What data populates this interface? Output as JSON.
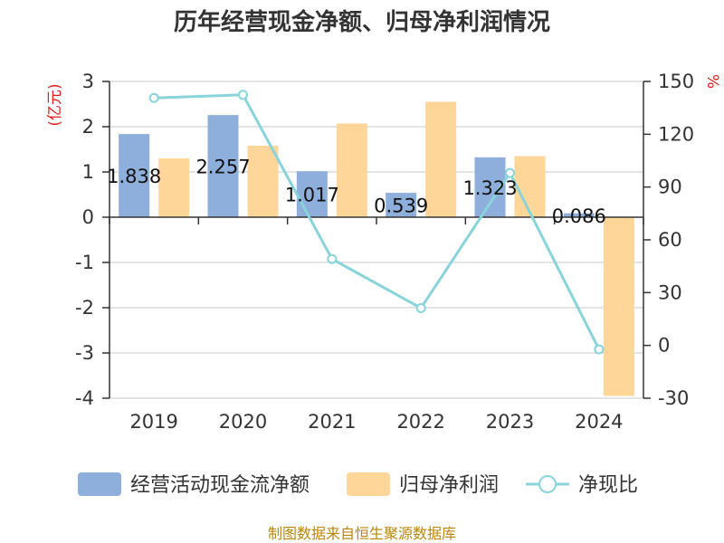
{
  "chart_data": {
    "type": "bar",
    "title": "历年经营现金净额、归母净利润情况",
    "categories": [
      "2019",
      "2020",
      "2021",
      "2022",
      "2023",
      "2024"
    ],
    "y_left": {
      "unit": "(亿元)",
      "ylim": [
        -4,
        3
      ],
      "ticks": [
        3,
        2,
        1,
        0,
        -1,
        -2,
        -3,
        -4
      ]
    },
    "y_right": {
      "unit": "%",
      "ylim": [
        -30,
        150
      ],
      "ticks": [
        150,
        120,
        90,
        60,
        30,
        0,
        -30
      ]
    },
    "series": [
      {
        "name": "经营活动现金流净额",
        "kind": "bar",
        "axis": "left",
        "color": "#8eafdb",
        "values": [
          1.838,
          2.257,
          1.017,
          0.539,
          1.323,
          0.086
        ],
        "labels": [
          "1.838",
          "2.257",
          "1.017",
          "0.539",
          "1.323",
          "0.086"
        ]
      },
      {
        "name": "归母净利润",
        "kind": "bar",
        "axis": "left",
        "color": "#ffd699",
        "values": [
          1.3,
          1.58,
          2.07,
          2.55,
          1.35,
          -3.95
        ]
      },
      {
        "name": "净现比",
        "kind": "line",
        "axis": "right",
        "color": "#88d4da",
        "values": [
          140.6,
          142.4,
          49.1,
          21.2,
          98.0,
          -2.2
        ]
      }
    ],
    "grid": true,
    "legend": "bottom"
  },
  "footer": {
    "source": "制图数据来自恒生聚源数据库"
  }
}
